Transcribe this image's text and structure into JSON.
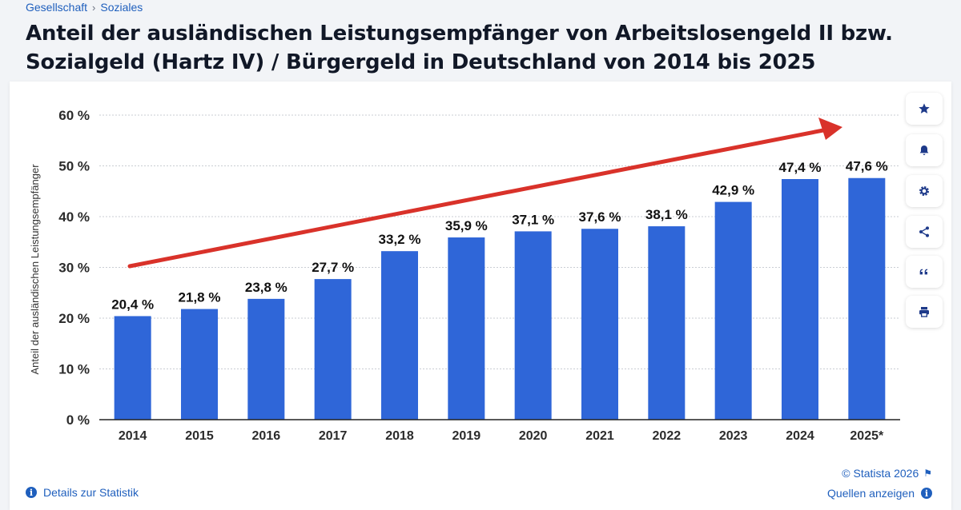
{
  "breadcrumb": {
    "items": [
      "Gesellschaft",
      "Soziales"
    ],
    "separator": "›"
  },
  "title": "Anteil der ausländischen Leistungsempfänger von Arbeitslosengeld II bzw. Sozialgeld (Hartz IV) / Bürgergeld in Deutschland von 2014 bis 2025",
  "toolbar": {
    "buttons": [
      {
        "name": "favorite-button",
        "icon": "star-icon"
      },
      {
        "name": "notification-button",
        "icon": "bell-icon"
      },
      {
        "name": "settings-button",
        "icon": "gear-icon"
      },
      {
        "name": "share-button",
        "icon": "share-icon"
      },
      {
        "name": "cite-button",
        "icon": "quote-icon"
      },
      {
        "name": "print-button",
        "icon": "printer-icon"
      }
    ]
  },
  "footer": {
    "details_label": "Details zur Statistik",
    "copyright": "© Statista 2026",
    "sources_label": "Quellen anzeigen"
  },
  "colors": {
    "bar": "#2f66d8",
    "arrow": "#d9322a",
    "link": "#1f5fbd"
  },
  "chart_data": {
    "type": "bar",
    "categories": [
      "2014",
      "2015",
      "2016",
      "2017",
      "2018",
      "2019",
      "2020",
      "2021",
      "2022",
      "2023",
      "2024",
      "2025*"
    ],
    "values": [
      20.4,
      21.8,
      23.8,
      27.7,
      33.2,
      35.9,
      37.1,
      37.6,
      38.1,
      42.9,
      47.4,
      47.6
    ],
    "data_labels": [
      "20,4 %",
      "21,8 %",
      "23,8 %",
      "27,7 %",
      "33,2 %",
      "35,9 %",
      "37,1 %",
      "37,6 %",
      "38,1 %",
      "42,9 %",
      "47,4 %",
      "47,6 %"
    ],
    "ylabel": "Anteil der ausländischen Leistungsempfänger",
    "ylim": [
      0,
      60
    ],
    "yticks": [
      0,
      10,
      20,
      30,
      40,
      50,
      60
    ],
    "ytick_labels": [
      "0 %",
      "10 %",
      "20 %",
      "30 %",
      "40 %",
      "50 %",
      "60 %"
    ],
    "grid": true,
    "annotations": [
      {
        "type": "trend-arrow",
        "color": "#d9322a"
      }
    ]
  }
}
